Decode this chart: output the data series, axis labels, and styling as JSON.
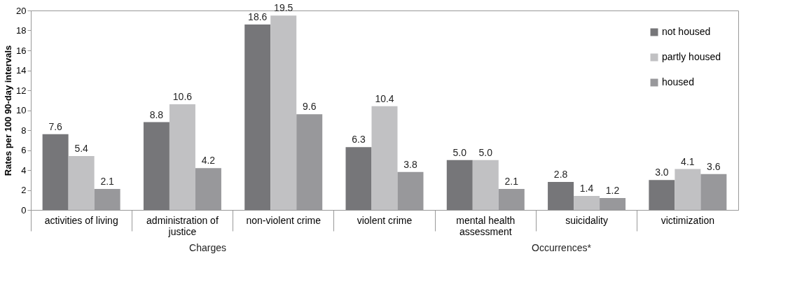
{
  "chart_data": {
    "type": "bar",
    "ylabel": "Rates per 100 90-day intervals",
    "categories": [
      "activities of living",
      "administration of justice",
      "non-violent crime",
      "violent crime",
      "mental health assessment",
      "suicidality",
      "victimization"
    ],
    "series": [
      {
        "name": "not housed",
        "color": "#767679",
        "values": [
          7.6,
          8.8,
          18.6,
          6.3,
          5.0,
          2.8,
          3.0
        ],
        "value_labels": [
          "7.6",
          "8.8",
          "18.6",
          "6.3",
          "5.0",
          "2.8",
          "3.0"
        ]
      },
      {
        "name": "partly housed",
        "color": "#c1c1c3",
        "values": [
          5.4,
          10.6,
          19.5,
          10.4,
          5.0,
          1.4,
          4.1
        ],
        "value_labels": [
          "5.4",
          "10.6",
          "19.5",
          "10.4",
          "5.0",
          "1.4",
          "4.1"
        ]
      },
      {
        "name": "housed",
        "color": "#98989b",
        "values": [
          2.1,
          4.2,
          9.6,
          3.8,
          2.1,
          1.2,
          3.6
        ],
        "value_labels": [
          "2.1",
          "4.2",
          "9.6",
          "3.8",
          "2.1",
          "1.2",
          "3.6"
        ]
      }
    ],
    "ylim": [
      0,
      20
    ],
    "yticks": [
      0,
      2,
      4,
      6,
      8,
      10,
      12,
      14,
      16,
      18,
      20
    ],
    "legend": "top right",
    "grid": false,
    "annotations": [
      "Charges",
      "Occurrences*"
    ]
  }
}
